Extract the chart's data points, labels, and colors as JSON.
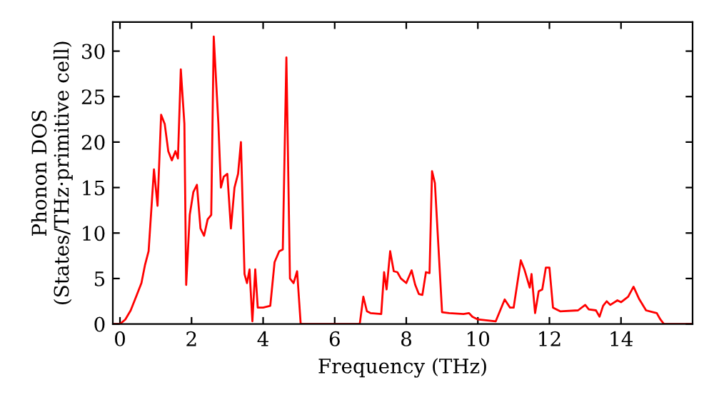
{
  "chart_data": {
    "type": "line",
    "xlabel": "Frequency (THz)",
    "ylabel": "Phonon DOS\n(States/THz·primitive cell)",
    "xlim": [
      -0.2,
      16
    ],
    "ylim": [
      0,
      33.2
    ],
    "xticks": [
      0,
      2,
      4,
      6,
      8,
      10,
      12,
      14
    ],
    "yticks": [
      0,
      5,
      10,
      15,
      20,
      25,
      30
    ],
    "grid": false,
    "marker": "none",
    "line_style": "solid",
    "series": [
      {
        "color": "#ff0000",
        "x": [
          -0.2,
          0,
          0.15,
          0.3,
          0.45,
          0.6,
          0.7,
          0.8,
          0.9,
          0.95,
          1.05,
          1.15,
          1.25,
          1.35,
          1.45,
          1.55,
          1.62,
          1.7,
          1.8,
          1.85,
          1.95,
          2.05,
          2.15,
          2.25,
          2.35,
          2.45,
          2.55,
          2.62,
          2.75,
          2.82,
          2.9,
          3.0,
          3.1,
          3.2,
          3.3,
          3.38,
          3.48,
          3.55,
          3.62,
          3.7,
          3.78,
          3.85,
          4.0,
          4.2,
          4.32,
          4.45,
          4.55,
          4.65,
          4.75,
          4.85,
          4.95,
          5.05,
          6.7,
          6.8,
          6.9,
          7.0,
          7.3,
          7.38,
          7.45,
          7.55,
          7.65,
          7.75,
          7.85,
          8.0,
          8.15,
          8.25,
          8.35,
          8.45,
          8.55,
          8.65,
          8.72,
          8.8,
          9.0,
          9.2,
          9.6,
          9.75,
          9.85,
          10.0,
          10.5,
          10.75,
          10.9,
          11.0,
          11.2,
          11.3,
          11.45,
          11.5,
          11.6,
          11.7,
          11.8,
          11.9,
          12.0,
          12.1,
          12.3,
          12.8,
          13.0,
          13.1,
          13.3,
          13.4,
          13.5,
          13.6,
          13.7,
          13.9,
          14.0,
          14.2,
          14.35,
          14.5,
          14.7,
          14.9,
          15.0,
          15.1,
          15.2,
          16
        ],
        "values": [
          0,
          0,
          0.5,
          1.5,
          3,
          4.5,
          6.5,
          8,
          14,
          17,
          13,
          23,
          22,
          19,
          18,
          19,
          18.2,
          28,
          22,
          4.3,
          12,
          14.5,
          15.3,
          10.5,
          9.7,
          11.5,
          12,
          31.6,
          22,
          15,
          16.2,
          16.5,
          10.5,
          15,
          16.5,
          20,
          5.5,
          4.5,
          6,
          0.3,
          6,
          1.8,
          1.8,
          2,
          6.8,
          8,
          8.2,
          29.3,
          5,
          4.5,
          5.8,
          0,
          0,
          3,
          1.4,
          1.2,
          1.1,
          5.7,
          3.8,
          8,
          5.8,
          5.7,
          5,
          4.5,
          5.9,
          4.3,
          3.3,
          3.2,
          5.7,
          5.6,
          16.8,
          15.5,
          1.3,
          1.2,
          1.1,
          1.2,
          0.8,
          0.5,
          0.3,
          2.7,
          1.8,
          1.8,
          7,
          6,
          4,
          5.5,
          1.2,
          3.6,
          3.8,
          6.2,
          6.2,
          1.8,
          1.4,
          1.5,
          2.1,
          1.6,
          1.5,
          0.8,
          2,
          2.5,
          2.1,
          2.6,
          2.4,
          3,
          4.1,
          2.8,
          1.5,
          1.3,
          1.2,
          0.5,
          0,
          0
        ]
      }
    ]
  }
}
